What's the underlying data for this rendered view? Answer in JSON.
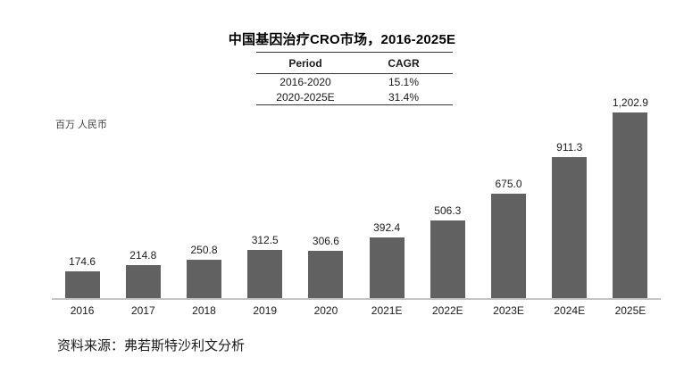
{
  "title": "中国基因治疗CRO市场，2016-2025E",
  "unit_label": "百万 人民币",
  "cagr_table": {
    "headers": [
      "Period",
      "CAGR"
    ],
    "rows": [
      [
        "2016-2020",
        "15.1%"
      ],
      [
        "2020-2025E",
        "31.4%"
      ]
    ]
  },
  "source": "资料来源：弗若斯特沙利文分析",
  "colors": {
    "bar": "#616161",
    "axis": "#c4c4c4",
    "table_border": "#333333"
  },
  "chart_data": {
    "type": "bar",
    "title": "中国基因治疗CRO市场，2016-2025E",
    "categories": [
      "2016",
      "2017",
      "2018",
      "2019",
      "2020",
      "2021E",
      "2022E",
      "2023E",
      "2024E",
      "2025E"
    ],
    "values": [
      174.6,
      214.8,
      250.8,
      312.5,
      306.6,
      392.4,
      506.3,
      675.0,
      911.3,
      1202.9
    ],
    "value_labels": [
      "174.6",
      "214.8",
      "250.8",
      "312.5",
      "306.6",
      "392.4",
      "506.3",
      "675.0",
      "911.3",
      "1,202.9"
    ],
    "xlabel": "",
    "ylabel": "百万 人民币",
    "ylim": [
      0,
      1250
    ],
    "grid": false,
    "legend": false,
    "annotations": {
      "cagr_2016_2020": "15.1%",
      "cagr_2020_2025E": "31.4%"
    }
  }
}
